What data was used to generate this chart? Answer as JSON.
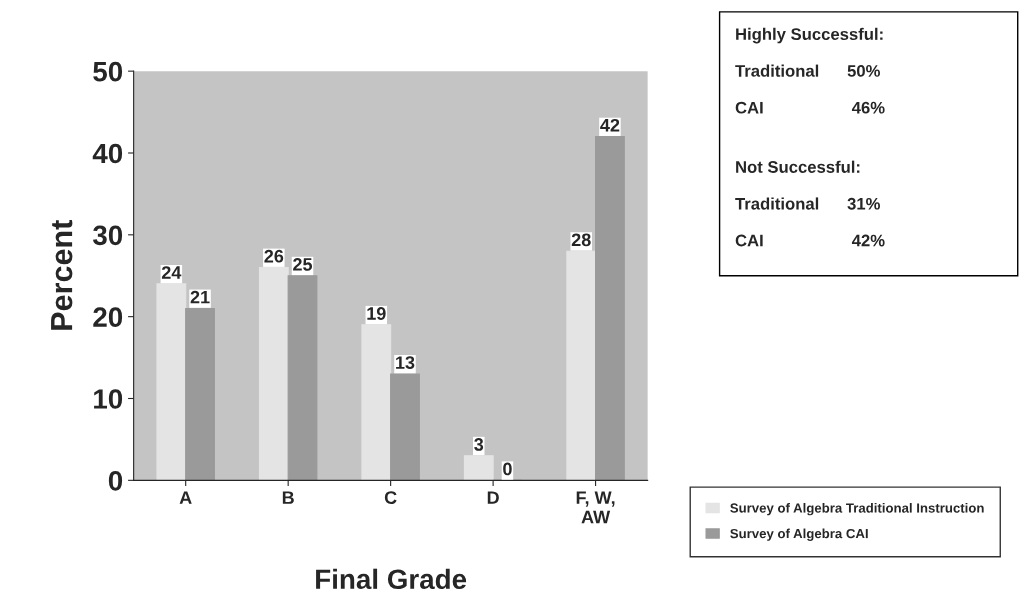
{
  "chart_data": {
    "type": "bar",
    "xlabel": "Final Grade",
    "ylabel": "Percent",
    "categories": [
      "A",
      "B",
      "C",
      "D",
      "F, W,\nAW"
    ],
    "series": [
      {
        "name": "Survey of Algebra Traditional Instruction",
        "color": "#e4e4e4",
        "values": [
          24,
          26,
          19,
          3,
          28
        ]
      },
      {
        "name": "Survey of Algebra CAI",
        "color": "#9a9a9a",
        "values": [
          21,
          25,
          13,
          0,
          42
        ]
      }
    ],
    "ylim": [
      0,
      50
    ],
    "yticks": [
      0,
      10,
      20,
      30,
      40,
      50
    ],
    "data_labels": true,
    "legend": "right",
    "grid": false,
    "annotations": [
      "Highly Successful:",
      "Traditional      50%",
      "CAI                   46%",
      "Not Successful:",
      "Traditional      31%",
      "CAI                   42%"
    ]
  }
}
